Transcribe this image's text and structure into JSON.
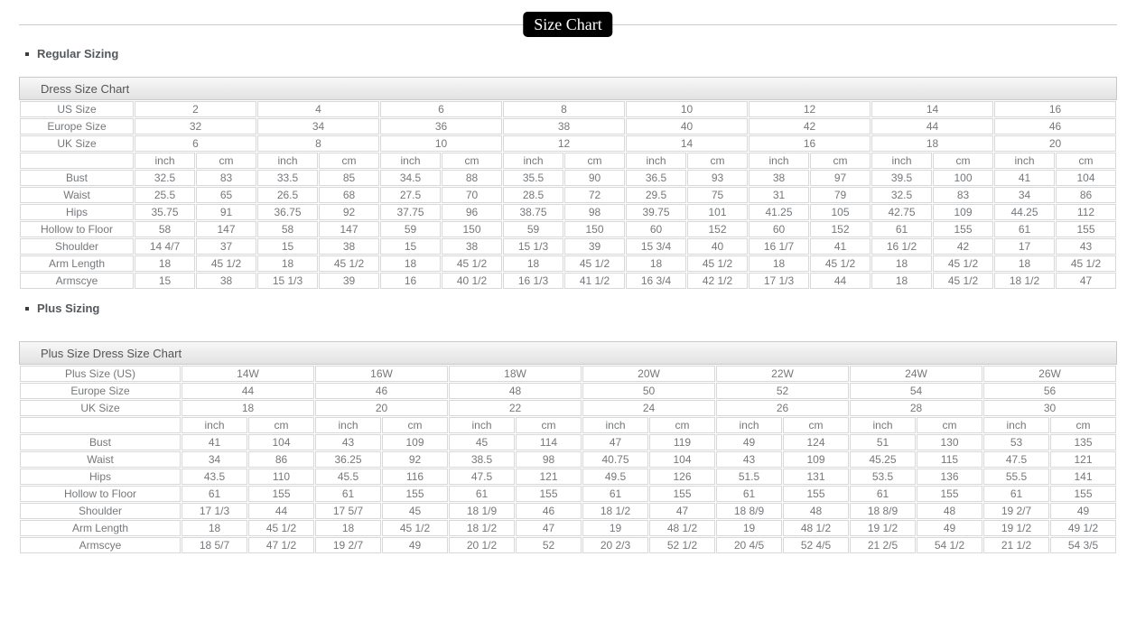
{
  "page_title": "Size Chart",
  "sections": [
    {
      "heading": "Regular Sizing",
      "table_title": "Dress Size Chart",
      "size_label_rows": [
        {
          "label": "US Size",
          "values": [
            "2",
            "4",
            "6",
            "8",
            "10",
            "12",
            "14",
            "16"
          ]
        },
        {
          "label": "Europe Size",
          "values": [
            "32",
            "34",
            "36",
            "38",
            "40",
            "42",
            "44",
            "46"
          ]
        },
        {
          "label": "UK Size",
          "values": [
            "6",
            "8",
            "10",
            "12",
            "14",
            "16",
            "18",
            "20"
          ]
        }
      ],
      "unit_labels": [
        "inch",
        "cm"
      ],
      "measurement_rows": [
        {
          "label": "Bust",
          "pairs": [
            [
              "32.5",
              "83"
            ],
            [
              "33.5",
              "85"
            ],
            [
              "34.5",
              "88"
            ],
            [
              "35.5",
              "90"
            ],
            [
              "36.5",
              "93"
            ],
            [
              "38",
              "97"
            ],
            [
              "39.5",
              "100"
            ],
            [
              "41",
              "104"
            ]
          ]
        },
        {
          "label": "Waist",
          "pairs": [
            [
              "25.5",
              "65"
            ],
            [
              "26.5",
              "68"
            ],
            [
              "27.5",
              "70"
            ],
            [
              "28.5",
              "72"
            ],
            [
              "29.5",
              "75"
            ],
            [
              "31",
              "79"
            ],
            [
              "32.5",
              "83"
            ],
            [
              "34",
              "86"
            ]
          ]
        },
        {
          "label": "Hips",
          "pairs": [
            [
              "35.75",
              "91"
            ],
            [
              "36.75",
              "92"
            ],
            [
              "37.75",
              "96"
            ],
            [
              "38.75",
              "98"
            ],
            [
              "39.75",
              "101"
            ],
            [
              "41.25",
              "105"
            ],
            [
              "42.75",
              "109"
            ],
            [
              "44.25",
              "112"
            ]
          ]
        },
        {
          "label": "Hollow to Floor",
          "pairs": [
            [
              "58",
              "147"
            ],
            [
              "58",
              "147"
            ],
            [
              "59",
              "150"
            ],
            [
              "59",
              "150"
            ],
            [
              "60",
              "152"
            ],
            [
              "60",
              "152"
            ],
            [
              "61",
              "155"
            ],
            [
              "61",
              "155"
            ]
          ]
        },
        {
          "label": "Shoulder",
          "pairs": [
            [
              "14 4/7",
              "37"
            ],
            [
              "15",
              "38"
            ],
            [
              "15",
              "38"
            ],
            [
              "15 1/3",
              "39"
            ],
            [
              "15 3/4",
              "40"
            ],
            [
              "16 1/7",
              "41"
            ],
            [
              "16 1/2",
              "42"
            ],
            [
              "17",
              "43"
            ]
          ]
        },
        {
          "label": "Arm Length",
          "pairs": [
            [
              "18",
              "45 1/2"
            ],
            [
              "18",
              "45 1/2"
            ],
            [
              "18",
              "45 1/2"
            ],
            [
              "18",
              "45 1/2"
            ],
            [
              "18",
              "45 1/2"
            ],
            [
              "18",
              "45 1/2"
            ],
            [
              "18",
              "45 1/2"
            ],
            [
              "18",
              "45 1/2"
            ]
          ]
        },
        {
          "label": "Armscye",
          "pairs": [
            [
              "15",
              "38"
            ],
            [
              "15 1/3",
              "39"
            ],
            [
              "16",
              "40 1/2"
            ],
            [
              "16 1/3",
              "41 1/2"
            ],
            [
              "16 3/4",
              "42 1/2"
            ],
            [
              "17 1/3",
              "44"
            ],
            [
              "18",
              "45 1/2"
            ],
            [
              "18 1/2",
              "47"
            ]
          ]
        }
      ]
    },
    {
      "heading": "Plus Sizing",
      "table_title": "Plus Size Dress Size Chart",
      "size_label_rows": [
        {
          "label": "Plus Size (US)",
          "values": [
            "14W",
            "16W",
            "18W",
            "20W",
            "22W",
            "24W",
            "26W"
          ]
        },
        {
          "label": "Europe Size",
          "values": [
            "44",
            "46",
            "48",
            "50",
            "52",
            "54",
            "56"
          ]
        },
        {
          "label": "UK Size",
          "values": [
            "18",
            "20",
            "22",
            "24",
            "26",
            "28",
            "30"
          ]
        }
      ],
      "unit_labels": [
        "inch",
        "cm"
      ],
      "measurement_rows": [
        {
          "label": "Bust",
          "pairs": [
            [
              "41",
              "104"
            ],
            [
              "43",
              "109"
            ],
            [
              "45",
              "114"
            ],
            [
              "47",
              "119"
            ],
            [
              "49",
              "124"
            ],
            [
              "51",
              "130"
            ],
            [
              "53",
              "135"
            ]
          ]
        },
        {
          "label": "Waist",
          "pairs": [
            [
              "34",
              "86"
            ],
            [
              "36.25",
              "92"
            ],
            [
              "38.5",
              "98"
            ],
            [
              "40.75",
              "104"
            ],
            [
              "43",
              "109"
            ],
            [
              "45.25",
              "115"
            ],
            [
              "47.5",
              "121"
            ]
          ]
        },
        {
          "label": "Hips",
          "pairs": [
            [
              "43.5",
              "110"
            ],
            [
              "45.5",
              "116"
            ],
            [
              "47.5",
              "121"
            ],
            [
              "49.5",
              "126"
            ],
            [
              "51.5",
              "131"
            ],
            [
              "53.5",
              "136"
            ],
            [
              "55.5",
              "141"
            ]
          ]
        },
        {
          "label": "Hollow to Floor",
          "pairs": [
            [
              "61",
              "155"
            ],
            [
              "61",
              "155"
            ],
            [
              "61",
              "155"
            ],
            [
              "61",
              "155"
            ],
            [
              "61",
              "155"
            ],
            [
              "61",
              "155"
            ],
            [
              "61",
              "155"
            ]
          ]
        },
        {
          "label": "Shoulder",
          "pairs": [
            [
              "17 1/3",
              "44"
            ],
            [
              "17 5/7",
              "45"
            ],
            [
              "18 1/9",
              "46"
            ],
            [
              "18 1/2",
              "47"
            ],
            [
              "18 8/9",
              "48"
            ],
            [
              "18 8/9",
              "48"
            ],
            [
              "19 2/7",
              "49"
            ]
          ]
        },
        {
          "label": "Arm Length",
          "pairs": [
            [
              "18",
              "45 1/2"
            ],
            [
              "18",
              "45 1/2"
            ],
            [
              "18 1/2",
              "47"
            ],
            [
              "19",
              "48 1/2"
            ],
            [
              "19",
              "48 1/2"
            ],
            [
              "19 1/2",
              "49"
            ],
            [
              "19 1/2",
              "49 1/2"
            ]
          ]
        },
        {
          "label": "Armscye",
          "pairs": [
            [
              "18 5/7",
              "47 1/2"
            ],
            [
              "19 2/7",
              "49"
            ],
            [
              "20 1/2",
              "52"
            ],
            [
              "20 2/3",
              "52 1/2"
            ],
            [
              "20 4/5",
              "52 4/5"
            ],
            [
              "21 2/5",
              "54 1/2"
            ],
            [
              "21 1/2",
              "54 3/5"
            ]
          ]
        }
      ]
    }
  ]
}
